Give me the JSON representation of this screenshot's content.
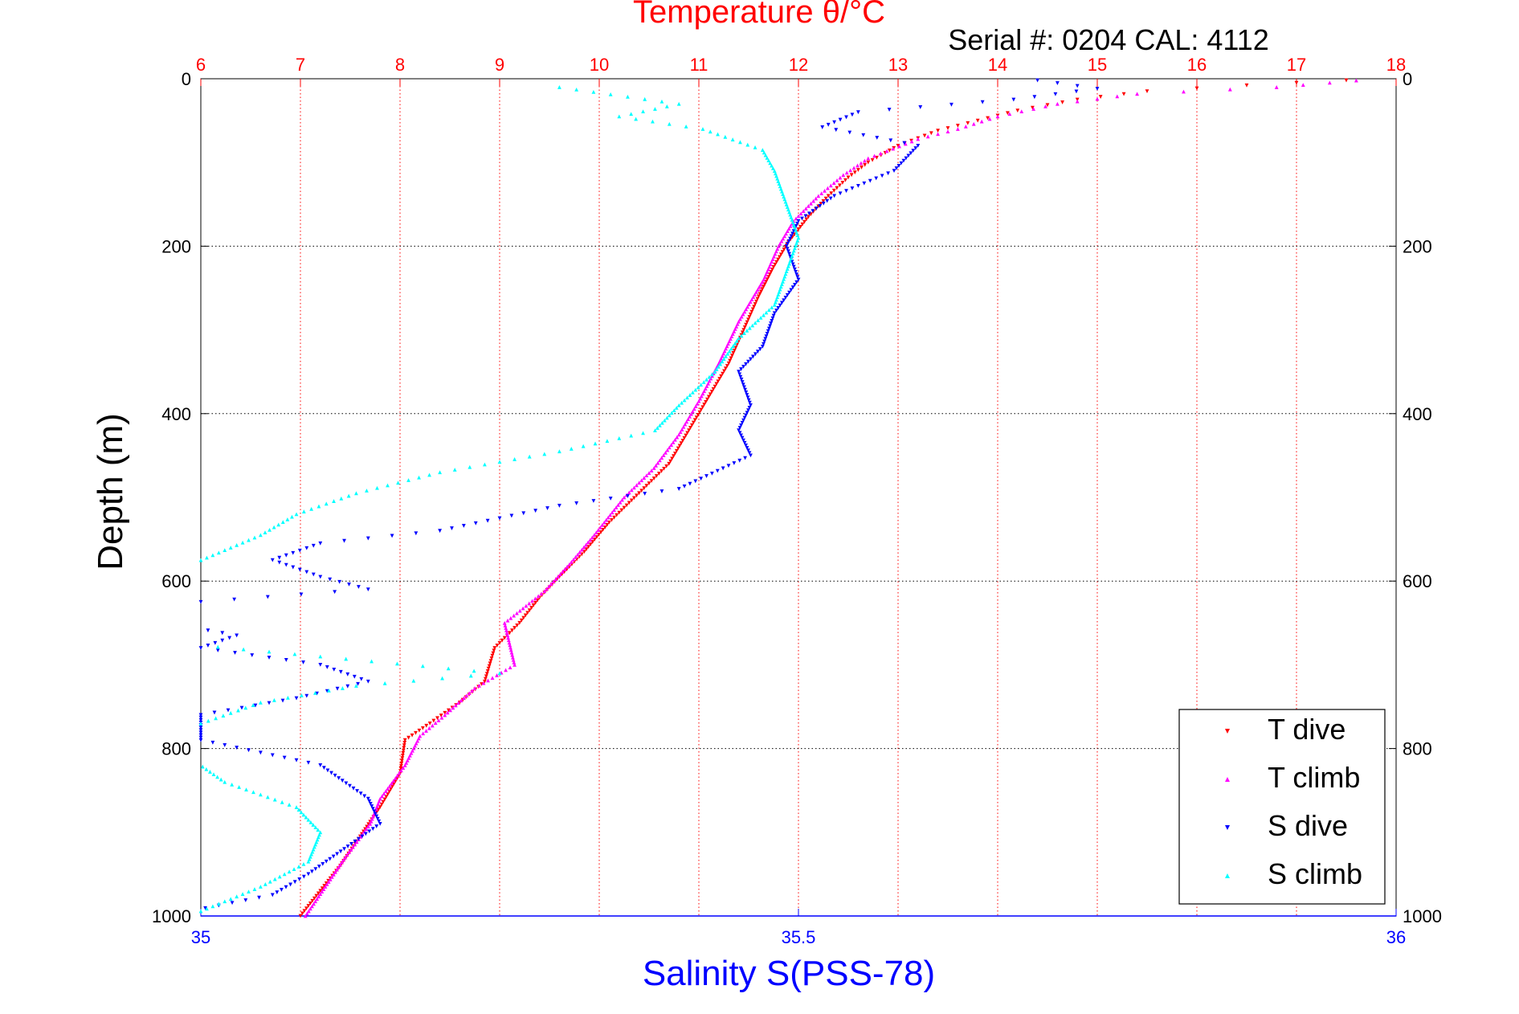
{
  "chart_data": {
    "type": "scatter",
    "title": "Temperature θ/°C",
    "subtitle": "Serial #: 0204  CAL: 4112",
    "ylabel": "Depth (m)",
    "xlabel": "Salinity S(PSS-78)",
    "y_axis": {
      "range": [
        0,
        1000
      ],
      "ticks": [
        0,
        200,
        400,
        600,
        800,
        1000
      ],
      "reversed": true,
      "grid": true
    },
    "temperature_axis": {
      "position": "top",
      "range": [
        6,
        18
      ],
      "ticks": [
        6,
        7,
        8,
        9,
        10,
        11,
        12,
        13,
        14,
        15,
        16,
        17,
        18
      ],
      "color": "#ff0000",
      "grid": true
    },
    "salinity_axis": {
      "position": "bottom",
      "range": [
        35,
        36
      ],
      "ticks": [
        "35",
        "35.5",
        "36"
      ],
      "color": "#0000ff"
    },
    "legend": {
      "position": "bottom-right"
    },
    "series": [
      {
        "name": "T dive",
        "axis": "temperature",
        "color": "#ff0000",
        "marker": "triangle-down",
        "points": [
          [
            17.5,
            2
          ],
          [
            16.5,
            8
          ],
          [
            15.5,
            15
          ],
          [
            14.8,
            25
          ],
          [
            14.2,
            38
          ],
          [
            13.8,
            50
          ],
          [
            13.4,
            62
          ],
          [
            13.0,
            80
          ],
          [
            12.7,
            100
          ],
          [
            12.5,
            118
          ],
          [
            12.3,
            140
          ],
          [
            12.1,
            165
          ],
          [
            11.9,
            195
          ],
          [
            11.75,
            225
          ],
          [
            11.6,
            260
          ],
          [
            11.45,
            300
          ],
          [
            11.3,
            340
          ],
          [
            11.1,
            380
          ],
          [
            10.9,
            420
          ],
          [
            10.7,
            460
          ],
          [
            10.4,
            495
          ],
          [
            10.1,
            530
          ],
          [
            9.85,
            565
          ],
          [
            9.6,
            595
          ],
          [
            9.4,
            620
          ],
          [
            9.2,
            650
          ],
          [
            8.95,
            680
          ],
          [
            8.85,
            720
          ],
          [
            8.6,
            745
          ],
          [
            8.3,
            770
          ],
          [
            8.05,
            790
          ],
          [
            8.0,
            830
          ],
          [
            7.8,
            870
          ],
          [
            7.6,
            905
          ],
          [
            7.4,
            940
          ],
          [
            7.2,
            970
          ],
          [
            7.0,
            1000
          ]
        ]
      },
      {
        "name": "T climb",
        "axis": "temperature",
        "color": "#ff00ff",
        "marker": "triangle-up",
        "points": [
          [
            17.6,
            2
          ],
          [
            16.8,
            10
          ],
          [
            15.4,
            18
          ],
          [
            14.6,
            30
          ],
          [
            14.0,
            45
          ],
          [
            13.6,
            60
          ],
          [
            13.2,
            72
          ],
          [
            12.7,
            95
          ],
          [
            12.45,
            115
          ],
          [
            12.2,
            140
          ],
          [
            11.95,
            170
          ],
          [
            11.8,
            200
          ],
          [
            11.65,
            240
          ],
          [
            11.4,
            290
          ],
          [
            11.2,
            340
          ],
          [
            11.0,
            385
          ],
          [
            10.8,
            425
          ],
          [
            10.55,
            465
          ],
          [
            10.25,
            500
          ],
          [
            9.95,
            545
          ],
          [
            9.7,
            580
          ],
          [
            9.45,
            612
          ],
          [
            9.05,
            650
          ],
          [
            9.15,
            700
          ],
          [
            8.75,
            728
          ],
          [
            8.45,
            760
          ],
          [
            8.2,
            785
          ],
          [
            8.05,
            820
          ],
          [
            7.8,
            860
          ],
          [
            7.7,
            890
          ],
          [
            7.45,
            930
          ],
          [
            7.25,
            965
          ],
          [
            7.05,
            1000
          ]
        ]
      },
      {
        "name": "S dive",
        "axis": "salinity",
        "color": "#0000ff",
        "marker": "triangle-down",
        "points": [
          [
            35.7,
            2
          ],
          [
            35.75,
            12
          ],
          [
            35.68,
            25
          ],
          [
            35.55,
            40
          ],
          [
            35.52,
            58
          ],
          [
            35.6,
            80
          ],
          [
            35.58,
            110
          ],
          [
            35.53,
            140
          ],
          [
            35.5,
            170
          ],
          [
            35.49,
            200
          ],
          [
            35.5,
            240
          ],
          [
            35.48,
            280
          ],
          [
            35.47,
            320
          ],
          [
            35.45,
            350
          ],
          [
            35.46,
            390
          ],
          [
            35.45,
            420
          ],
          [
            35.46,
            450
          ],
          [
            35.4,
            490
          ],
          [
            35.3,
            510
          ],
          [
            35.2,
            540
          ],
          [
            35.1,
            555
          ],
          [
            35.06,
            575
          ],
          [
            35.1,
            595
          ],
          [
            35.14,
            610
          ],
          [
            35.0,
            625
          ],
          [
            34.97,
            650
          ],
          [
            35.03,
            665
          ],
          [
            35.0,
            680
          ],
          [
            35.1,
            700
          ],
          [
            35.14,
            720
          ],
          [
            35.08,
            740
          ],
          [
            35.0,
            760
          ],
          [
            35.0,
            790
          ],
          [
            35.1,
            820
          ],
          [
            35.14,
            860
          ],
          [
            35.15,
            890
          ],
          [
            35.12,
            920
          ],
          [
            35.09,
            950
          ],
          [
            35.06,
            975
          ],
          [
            34.97,
            1000
          ]
        ]
      },
      {
        "name": "S climb",
        "axis": "salinity",
        "color": "#00ffff",
        "marker": "triangle-up",
        "points": [
          [
            35.3,
            10
          ],
          [
            35.4,
            30
          ],
          [
            35.35,
            45
          ],
          [
            35.42,
            60
          ],
          [
            35.47,
            85
          ],
          [
            35.48,
            110
          ],
          [
            35.49,
            150
          ],
          [
            35.5,
            190
          ],
          [
            35.49,
            230
          ],
          [
            35.48,
            270
          ],
          [
            35.45,
            310
          ],
          [
            35.43,
            350
          ],
          [
            35.4,
            390
          ],
          [
            35.38,
            420
          ],
          [
            35.3,
            445
          ],
          [
            35.2,
            470
          ],
          [
            35.13,
            495
          ],
          [
            35.08,
            520
          ],
          [
            35.05,
            545
          ],
          [
            35.0,
            575
          ],
          [
            34.98,
            600
          ],
          [
            34.95,
            625
          ],
          [
            34.9,
            650
          ],
          [
            34.95,
            670
          ],
          [
            35.1,
            690
          ],
          [
            35.25,
            710
          ],
          [
            35.13,
            725
          ],
          [
            35.05,
            745
          ],
          [
            35.0,
            770
          ],
          [
            34.98,
            800
          ],
          [
            35.02,
            840
          ],
          [
            35.08,
            870
          ],
          [
            35.1,
            900
          ],
          [
            35.09,
            935
          ],
          [
            35.05,
            965
          ],
          [
            34.99,
            1000
          ]
        ]
      }
    ]
  }
}
